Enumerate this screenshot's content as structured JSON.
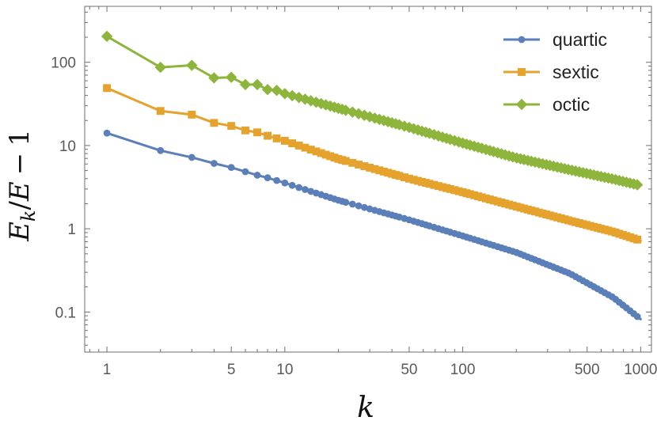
{
  "chart_data": {
    "type": "line",
    "scale": {
      "x": "log",
      "y": "log"
    },
    "xlabel": "k",
    "ylabel": "E_k/E − 1",
    "ylabel_parts": [
      "E",
      "k",
      "/",
      "E",
      "−",
      "1"
    ],
    "xlim": [
      0.75,
      1150
    ],
    "ylim": [
      0.033,
      470
    ],
    "x_ticks": [
      {
        "value": 1,
        "label": "1"
      },
      {
        "value": 5,
        "label": "5"
      },
      {
        "value": 10,
        "label": "10"
      },
      {
        "value": 50,
        "label": "50"
      },
      {
        "value": 100,
        "label": "100"
      },
      {
        "value": 500,
        "label": "500"
      },
      {
        "value": 1000,
        "label": "1000"
      }
    ],
    "y_ticks": [
      {
        "value": 0.1,
        "label": "0.1"
      },
      {
        "value": 1,
        "label": "1"
      },
      {
        "value": 10,
        "label": "10"
      },
      {
        "value": 100,
        "label": "100"
      }
    ],
    "legend_position": "top-right",
    "series": [
      {
        "name": "quartic",
        "color": "#5b7fb8",
        "marker": "circle",
        "anchors": [
          [
            1,
            14.1
          ],
          [
            2,
            8.7
          ],
          [
            3,
            7.2
          ],
          [
            4,
            6.1
          ],
          [
            5,
            5.45
          ],
          [
            6,
            4.85
          ],
          [
            7,
            4.4
          ],
          [
            8,
            4.1
          ],
          [
            10,
            3.55
          ],
          [
            20,
            2.2
          ],
          [
            50,
            1.28
          ],
          [
            100,
            0.82
          ],
          [
            200,
            0.52
          ],
          [
            400,
            0.29
          ],
          [
            700,
            0.15
          ],
          [
            1000,
            0.082
          ]
        ]
      },
      {
        "name": "sextic",
        "color": "#e5a22d",
        "marker": "square",
        "anchors": [
          [
            1,
            49
          ],
          [
            2,
            26
          ],
          [
            3,
            23.5
          ],
          [
            4,
            18.7
          ],
          [
            5,
            17.2
          ],
          [
            6,
            15.2
          ],
          [
            7,
            14.4
          ],
          [
            8,
            13.1
          ],
          [
            10,
            11.4
          ],
          [
            20,
            6.9
          ],
          [
            50,
            4.0
          ],
          [
            100,
            2.75
          ],
          [
            200,
            1.85
          ],
          [
            400,
            1.25
          ],
          [
            700,
            0.92
          ],
          [
            1000,
            0.72
          ]
        ]
      },
      {
        "name": "octic",
        "color": "#8db53c",
        "marker": "diamond",
        "anchors": [
          [
            1,
            205
          ],
          [
            2,
            87
          ],
          [
            3,
            92
          ],
          [
            4,
            65
          ],
          [
            5,
            66
          ],
          [
            6,
            54
          ],
          [
            7,
            54
          ],
          [
            8,
            47
          ],
          [
            9,
            46
          ],
          [
            10,
            42
          ],
          [
            20,
            28
          ],
          [
            50,
            16.5
          ],
          [
            100,
            10.7
          ],
          [
            200,
            7.1
          ],
          [
            400,
            5.1
          ],
          [
            700,
            3.95
          ],
          [
            1000,
            3.3
          ]
        ]
      }
    ]
  }
}
